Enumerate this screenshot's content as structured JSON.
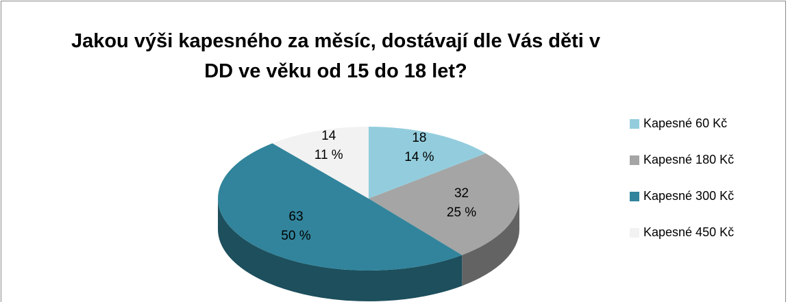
{
  "chart_data": {
    "type": "pie3d",
    "title": "Jakou výši kapesného za měsíc, dostávají dle Vás děti v DD ve věku od 15 do 18 let?",
    "categories": [
      "Kapesné 60 Kč",
      "Kapesné 180 Kč",
      "Kapesné 300 Kč",
      "Kapesné 450 Kč"
    ],
    "values": [
      18,
      32,
      63,
      14
    ],
    "percents": [
      14,
      25,
      50,
      11
    ],
    "percent_labels": [
      "14 %",
      "25 %",
      "50 %",
      "11 %"
    ],
    "colors": [
      "#93cddd",
      "#a5a5a5",
      "#31849b",
      "#f2f2f2"
    ],
    "legend": "right"
  }
}
